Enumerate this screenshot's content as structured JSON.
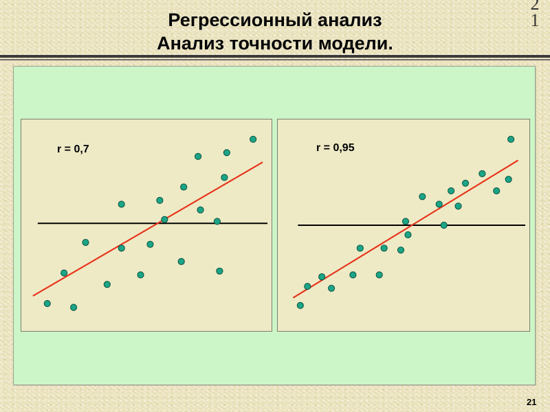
{
  "slide": {
    "title_line1": "Регрессионный анализ",
    "title_line2": "Анализ точности модели.",
    "corner_digit_top": "2",
    "corner_digit_bottom": "1",
    "slide_number": "21"
  },
  "colors": {
    "background": "#ECE5BF",
    "panel": "#CCF5C8",
    "plot_background": "#EEEAC6",
    "point_fill": "#1BA586",
    "point_stroke": "#0D4F3E",
    "regression_line": "#E8341C",
    "mean_line": "#000000"
  },
  "chart_data": [
    {
      "type": "scatter",
      "label": "r = 0,7",
      "xlim": [
        0,
        100
      ],
      "ylim": [
        0,
        100
      ],
      "points": [
        {
          "x": 8,
          "y": 9
        },
        {
          "x": 15,
          "y": 25
        },
        {
          "x": 19,
          "y": 7
        },
        {
          "x": 24,
          "y": 41
        },
        {
          "x": 33,
          "y": 19
        },
        {
          "x": 39,
          "y": 61
        },
        {
          "x": 39,
          "y": 38
        },
        {
          "x": 47,
          "y": 24
        },
        {
          "x": 51,
          "y": 40
        },
        {
          "x": 55,
          "y": 63
        },
        {
          "x": 57,
          "y": 53
        },
        {
          "x": 64,
          "y": 31
        },
        {
          "x": 65,
          "y": 70
        },
        {
          "x": 71,
          "y": 86
        },
        {
          "x": 72,
          "y": 58
        },
        {
          "x": 79,
          "y": 52
        },
        {
          "x": 80,
          "y": 26
        },
        {
          "x": 82,
          "y": 75
        },
        {
          "x": 83,
          "y": 88
        },
        {
          "x": 94,
          "y": 95
        }
      ],
      "regression": {
        "x0": 2,
        "y0": 13,
        "x1": 98,
        "y1": 83
      },
      "mean_y": 51
    },
    {
      "type": "scatter",
      "label": "r = 0,95",
      "xlim": [
        0,
        100
      ],
      "ylim": [
        0,
        100
      ],
      "points": [
        {
          "x": 6,
          "y": 8
        },
        {
          "x": 9,
          "y": 18
        },
        {
          "x": 15,
          "y": 23
        },
        {
          "x": 19,
          "y": 17
        },
        {
          "x": 28,
          "y": 24
        },
        {
          "x": 31,
          "y": 38
        },
        {
          "x": 39,
          "y": 24
        },
        {
          "x": 41,
          "y": 38
        },
        {
          "x": 48,
          "y": 37
        },
        {
          "x": 50,
          "y": 52
        },
        {
          "x": 51,
          "y": 45
        },
        {
          "x": 57,
          "y": 65
        },
        {
          "x": 64,
          "y": 61
        },
        {
          "x": 66,
          "y": 50
        },
        {
          "x": 69,
          "y": 68
        },
        {
          "x": 72,
          "y": 60
        },
        {
          "x": 75,
          "y": 72
        },
        {
          "x": 82,
          "y": 77
        },
        {
          "x": 88,
          "y": 68
        },
        {
          "x": 93,
          "y": 74
        },
        {
          "x": 94,
          "y": 95
        }
      ],
      "regression": {
        "x0": 3,
        "y0": 12,
        "x1": 97,
        "y1": 84
      },
      "mean_y": 50
    }
  ]
}
